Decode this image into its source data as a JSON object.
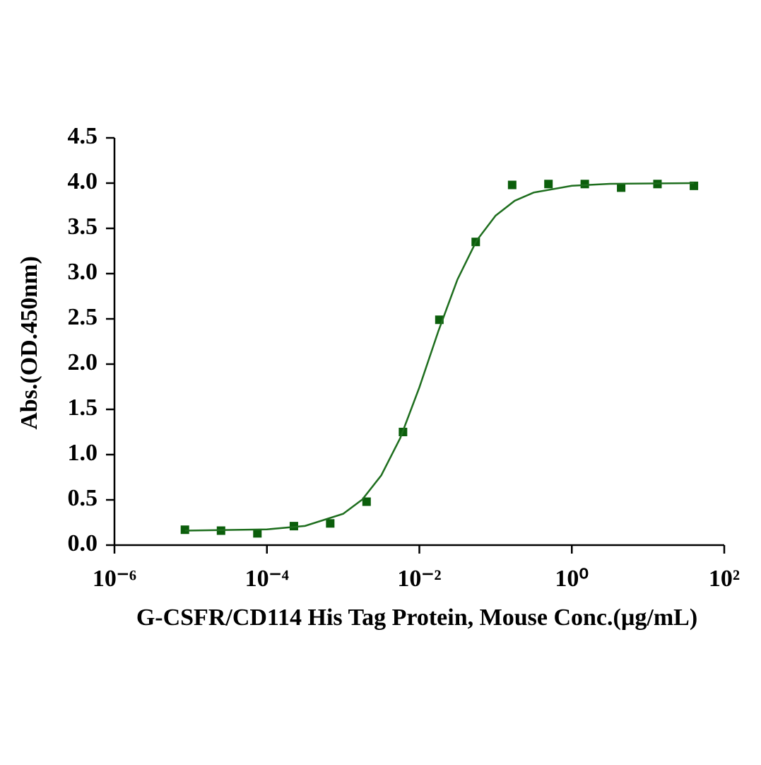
{
  "chart_data": {
    "type": "scatter",
    "xlabel": "G-CSFR/CD114 His Tag Protein, Mouse Conc.(µg/mL)",
    "ylabel": "Abs.(OD.450nm)",
    "xscale": "log",
    "xlim": [
      1e-06,
      100
    ],
    "xticks": [
      {
        "value": 1e-06,
        "label": "10⁻⁶"
      },
      {
        "value": 0.0001,
        "label": "10⁻⁴"
      },
      {
        "value": 0.01,
        "label": "10⁻²"
      },
      {
        "value": 1,
        "label": "10⁰"
      },
      {
        "value": 100,
        "label": "10²"
      }
    ],
    "ylim": [
      0,
      4.5
    ],
    "yticks": [
      {
        "value": 0,
        "label": "0.0"
      },
      0.5,
      {
        "value": 1,
        "label": "1.0"
      },
      1.5,
      {
        "value": 2,
        "label": "2.0"
      },
      2.5,
      {
        "value": 3,
        "label": "3.0"
      },
      3.5,
      {
        "value": 4,
        "label": "4.0"
      },
      4.5
    ],
    "series": [
      {
        "kind": "points",
        "color": "#0b5e0b",
        "x": [
          8.4e-06,
          2.5e-05,
          7.5e-05,
          0.000226,
          0.000677,
          0.00203,
          0.0061,
          0.0183,
          0.0549,
          0.165,
          0.494,
          1.48,
          4.44,
          13.3,
          40
        ],
        "values": [
          0.17,
          0.16,
          0.13,
          0.21,
          0.24,
          0.48,
          1.25,
          2.49,
          3.35,
          3.98,
          3.99,
          3.99,
          3.95,
          3.99,
          3.97
        ]
      },
      {
        "kind": "curve",
        "color": "#1e6e1e",
        "x": [
          8.4e-06,
          0.0001,
          0.000316,
          0.001,
          0.00178,
          0.00316,
          0.00562,
          0.01,
          0.0178,
          0.0316,
          0.0562,
          0.1,
          0.178,
          0.316,
          1,
          3.16,
          40
        ],
        "values": [
          0.16,
          0.174,
          0.212,
          0.346,
          0.503,
          0.77,
          1.184,
          1.743,
          2.367,
          2.935,
          3.363,
          3.641,
          3.805,
          3.896,
          3.971,
          3.992,
          4.0
        ]
      }
    ]
  }
}
